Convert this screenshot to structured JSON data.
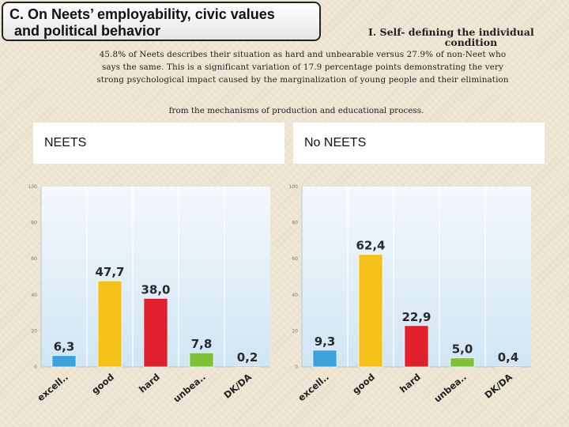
{
  "header": {
    "title_line1": "C. On Neets’ employability, civic values",
    "title_line2": "and political behavior",
    "subheading_line1": "I. Self- defining the individual",
    "subheading_line2": "condition",
    "paragraph_line1": "45.8% of Neets describes their situation as hard and unbearable versus 27.9% of non-Neet who",
    "paragraph_line2": "says the same. This is a significant variation of 17.9 percentage points demonstrating the very",
    "paragraph_line3": "strong psychological impact caused by the marginalization of young people and their elimination",
    "paragraph_line4": "from the mechanisms of production and educational process."
  },
  "chart_data": [
    {
      "type": "bar",
      "title": "NEETS",
      "categories": [
        "excell..",
        "good",
        "hard",
        "unbea..",
        "DK/DA"
      ],
      "values": [
        6.3,
        47.7,
        38.0,
        7.8,
        0.2
      ],
      "value_labels": [
        "6,3",
        "47,7",
        "38,0",
        "7,8",
        "0,2"
      ],
      "yticks": [
        "0",
        "20",
        "40",
        "60",
        "80",
        "100"
      ],
      "ylim": [
        0,
        100
      ],
      "grid": false,
      "bar_colors": [
        "#3aa3de",
        "#f6c21a",
        "#e0202c",
        "#7cc234",
        "#c87a3a"
      ]
    },
    {
      "type": "bar",
      "title": "No NEETS",
      "categories": [
        "excell..",
        "good",
        "hard",
        "unbea..",
        "DK/DA"
      ],
      "values": [
        9.3,
        62.4,
        22.9,
        5.0,
        0.4
      ],
      "value_labels": [
        "9,3",
        "62,4",
        "22,9",
        "5,0",
        "0,4"
      ],
      "yticks": [
        "0",
        "20",
        "40",
        "60",
        "80",
        "100"
      ],
      "ylim": [
        0,
        100
      ],
      "grid": false,
      "bar_colors": [
        "#3aa3de",
        "#f6c21a",
        "#e0202c",
        "#7cc234",
        "#c87a3a"
      ]
    }
  ]
}
